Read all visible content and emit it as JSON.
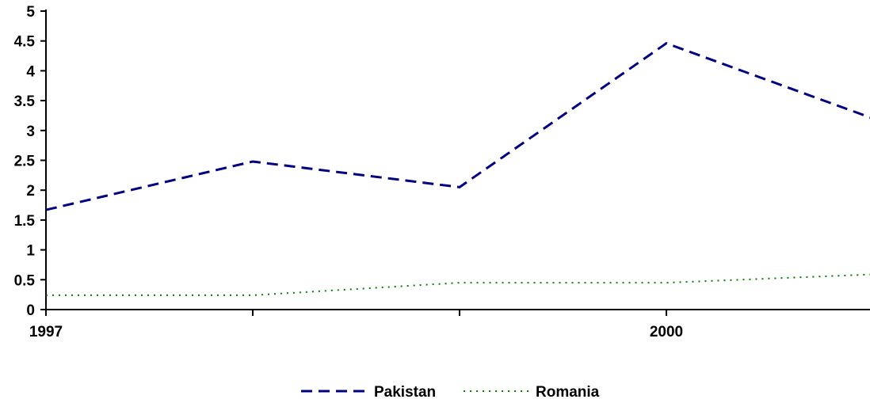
{
  "chart_data": {
    "type": "line",
    "x": [
      1997,
      1998,
      1999,
      2000,
      2001
    ],
    "x_tick_labels": [
      "1997",
      "",
      "",
      "2000",
      ""
    ],
    "ylim": [
      0,
      5
    ],
    "y_ticks": [
      0,
      0.5,
      1,
      1.5,
      2,
      2.5,
      3,
      3.5,
      4,
      4.5,
      5
    ],
    "y_tick_labels": [
      "0",
      "0.5",
      "1",
      "1.5",
      "2",
      "2.5",
      "3",
      "3.5",
      "4",
      "4.5",
      "5"
    ],
    "series": [
      {
        "name": "Pakistan",
        "values": [
          1.67,
          2.48,
          2.05,
          4.46,
          3.2
        ],
        "color": "#000080",
        "style": "dashed"
      },
      {
        "name": "Romania",
        "values": [
          0.24,
          0.24,
          0.45,
          0.45,
          0.59
        ],
        "color": "#008000",
        "style": "dotted"
      }
    ],
    "legend_position": "bottom-center",
    "grid": false
  }
}
